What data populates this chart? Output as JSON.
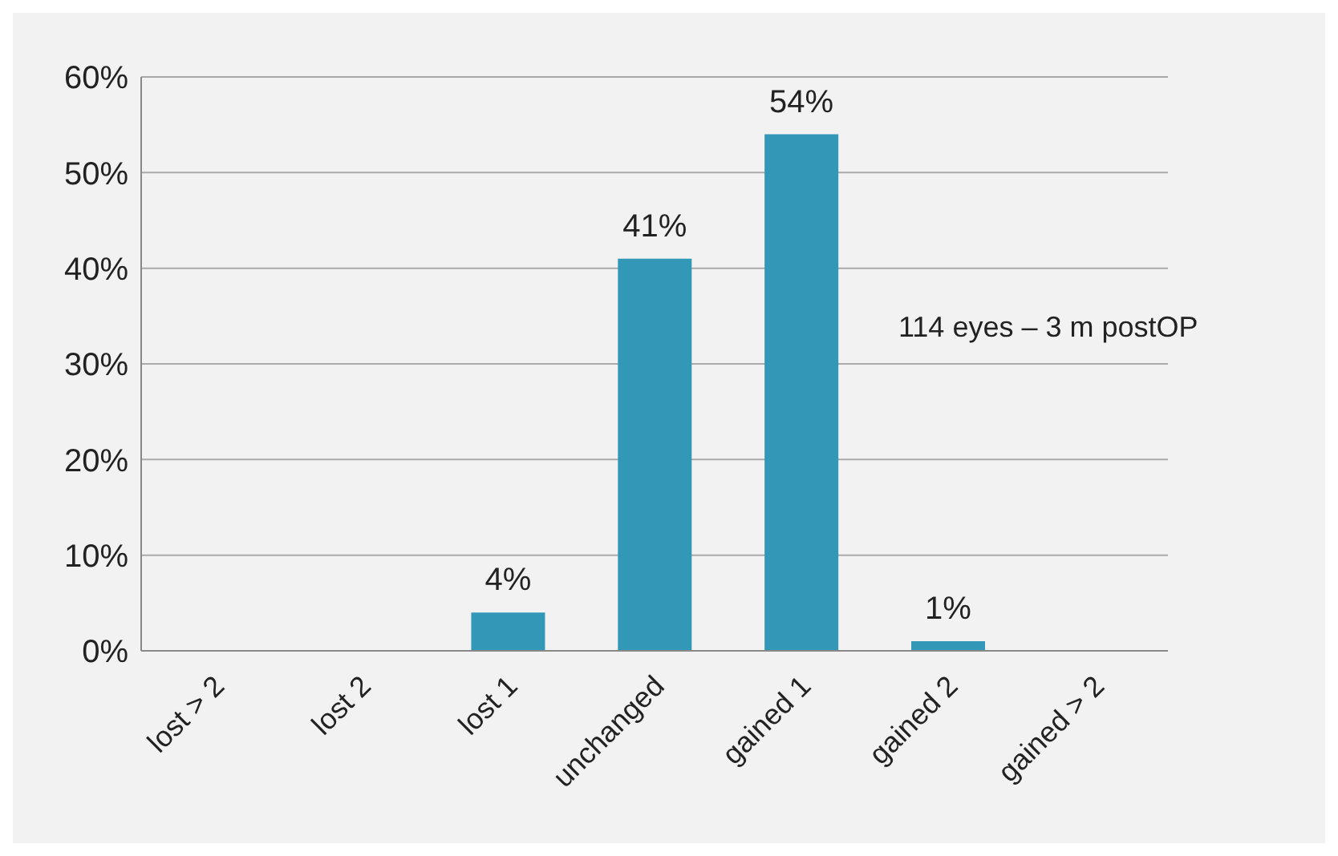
{
  "chart_data": {
    "type": "bar",
    "categories": [
      "lost > 2",
      "lost 2",
      "lost 1",
      "unchanged",
      "gained 1",
      "gained 2",
      "gained > 2"
    ],
    "values": [
      0,
      0,
      4,
      41,
      54,
      1,
      0
    ],
    "value_labels": [
      null,
      null,
      "4%",
      "41%",
      "54%",
      "1%",
      null
    ],
    "color": "#3398b8",
    "ylim": [
      0,
      60
    ],
    "yticks": [
      {
        "value": 0,
        "label": "0%"
      },
      {
        "value": 10,
        "label": "10%"
      },
      {
        "value": 20,
        "label": "20%"
      },
      {
        "value": 30,
        "label": "30%"
      },
      {
        "value": 40,
        "label": "40%"
      },
      {
        "value": 50,
        "label": "50%"
      },
      {
        "value": 60,
        "label": "60%"
      }
    ],
    "grid": "y",
    "annotations": [
      "114 eyes – 3 m postOP"
    ]
  }
}
